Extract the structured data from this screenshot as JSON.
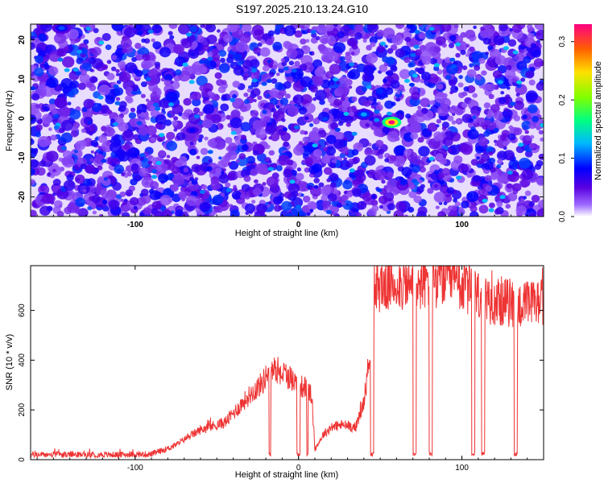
{
  "title": "S197.2025.210.13.24.G10",
  "chart_data": [
    {
      "type": "heatmap",
      "xlabel": "Height of straight line (km)",
      "ylabel": "Frequency (Hz)",
      "xlim": [
        -164,
        150
      ],
      "ylim": [
        -25,
        24
      ],
      "xticks": [
        "-100",
        "0",
        "100"
      ],
      "yticks": [
        "-20",
        "-10",
        "0",
        "10",
        "20"
      ],
      "xtick_values": [
        -100,
        0,
        100
      ],
      "ytick_values": [
        -20,
        -10,
        0,
        10,
        20
      ],
      "colorbar": {
        "label": "Normalized spectral amplitude",
        "range": [
          0.0,
          0.33
        ],
        "ticks": [
          "0.0",
          "0.1",
          "0.2",
          "0.3"
        ],
        "tick_values": [
          0.0,
          0.1,
          0.2,
          0.3
        ]
      },
      "peaks": [
        {
          "x": 57,
          "y": -1,
          "value": 0.33
        },
        {
          "x": 40,
          "y": 1,
          "value": 0.12
        },
        {
          "x": -65,
          "y": -3,
          "value": 0.08
        },
        {
          "x": -145,
          "y": 23,
          "value": 0.1
        }
      ]
    },
    {
      "type": "line",
      "xlabel": "Height of straight line (km)",
      "ylabel": "SNR (10 * v/v)",
      "xlim": [
        -164,
        150
      ],
      "ylim": [
        0,
        780
      ],
      "xticks": [
        "-100",
        "0",
        "100"
      ],
      "yticks": [
        "0",
        "200",
        "400",
        "600"
      ],
      "xtick_values": [
        -100,
        0,
        100
      ],
      "ytick_values": [
        0,
        200,
        400,
        600
      ],
      "color": "#ee3333",
      "profile": [
        [
          -164,
          20
        ],
        [
          -110,
          20
        ],
        [
          -90,
          22
        ],
        [
          -80,
          45
        ],
        [
          -75,
          60
        ],
        [
          -68,
          90
        ],
        [
          -60,
          120
        ],
        [
          -55,
          130
        ],
        [
          -45,
          150
        ],
        [
          -38,
          200
        ],
        [
          -30,
          260
        ],
        [
          -22,
          310
        ],
        [
          -18,
          360
        ],
        [
          -12,
          360
        ],
        [
          -5,
          330
        ],
        [
          0,
          300
        ],
        [
          4,
          290
        ],
        [
          8,
          260
        ],
        [
          10,
          40
        ],
        [
          15,
          100
        ],
        [
          20,
          130
        ],
        [
          27,
          140
        ],
        [
          35,
          130
        ],
        [
          40,
          230
        ],
        [
          44,
          440
        ],
        [
          48,
          700
        ],
        [
          60,
          710
        ],
        [
          70,
          700
        ],
        [
          80,
          720
        ],
        [
          90,
          730
        ],
        [
          100,
          700
        ],
        [
          110,
          660
        ],
        [
          120,
          640
        ],
        [
          130,
          630
        ],
        [
          140,
          620
        ],
        [
          150,
          640
        ]
      ],
      "dropouts": [
        [
          -18,
          -17
        ],
        [
          -1,
          1
        ],
        [
          5,
          6
        ],
        [
          44,
          46
        ],
        [
          70,
          72
        ],
        [
          80,
          82
        ],
        [
          106,
          108
        ],
        [
          112,
          114
        ],
        [
          132,
          134
        ]
      ]
    }
  ]
}
